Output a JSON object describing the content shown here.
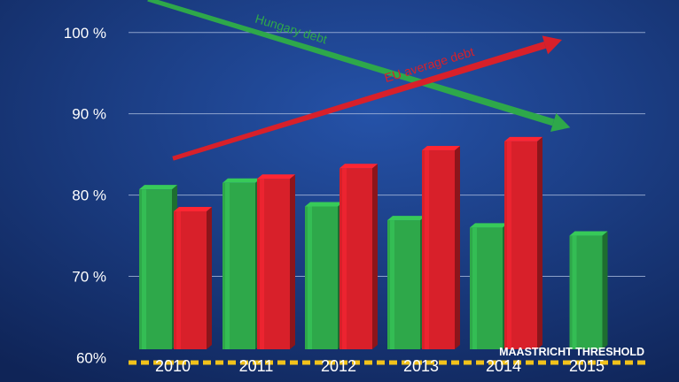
{
  "chart_data": {
    "type": "bar",
    "categories": [
      "2010",
      "2011",
      "2012",
      "2013",
      "2014",
      "2015"
    ],
    "series": [
      {
        "name": "Hungary debt",
        "color": "#2ea84a",
        "values": [
          80.7,
          81.5,
          78.6,
          76.9,
          76.0,
          75.0
        ]
      },
      {
        "name": "EU average debt",
        "color": "#d8202a",
        "values": [
          78.0,
          82.0,
          83.3,
          85.5,
          86.6,
          null
        ]
      }
    ],
    "ylim": [
      57,
      104
    ],
    "yticks": [
      {
        "value": 100,
        "label": "100 %"
      },
      {
        "value": 90,
        "label": "90 %"
      },
      {
        "value": 80,
        "label": "80 %"
      },
      {
        "value": 70,
        "label": "70 %"
      },
      {
        "value": 60,
        "label": "60%"
      }
    ],
    "grid": true,
    "threshold": {
      "value": 59.4,
      "label": "MAASTRICHT THRESHOLD",
      "color": "#f2c21b"
    },
    "trend_arrows": [
      {
        "label": "Hungary debt",
        "color": "#2ea84a",
        "from": {
          "x": -0.3,
          "y": 104.1
        },
        "to": {
          "x": 4.8,
          "y": 88.3
        }
      },
      {
        "label": "EU average debt",
        "color": "#d8202a",
        "from": {
          "x": 0.0,
          "y": 84.5
        },
        "to": {
          "x": 4.7,
          "y": 99.1
        }
      }
    ],
    "colors": {
      "background": "#14306b",
      "gridline": "#aabbdd",
      "axis_text": "#ffffff"
    }
  }
}
